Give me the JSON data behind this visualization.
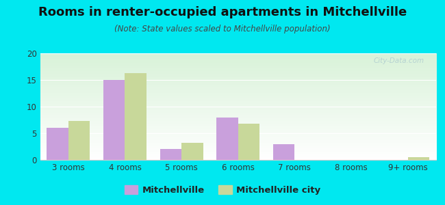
{
  "title": "Rooms in renter-occupied apartments in Mitchellville",
  "subtitle": "(Note: State values scaled to Mitchellville population)",
  "categories": [
    "3 rooms",
    "4 rooms",
    "5 rooms",
    "6 rooms",
    "7 rooms",
    "8 rooms",
    "9+ rooms"
  ],
  "mitchellville": [
    6,
    15,
    2,
    8,
    3,
    0,
    0
  ],
  "mitchellville_city": [
    7.3,
    16.3,
    3.2,
    6.8,
    0,
    0,
    0.5
  ],
  "color_mitchellville": "#c9a0dc",
  "color_city": "#c8d89a",
  "ylim": [
    0,
    20
  ],
  "yticks": [
    0,
    5,
    10,
    15,
    20
  ],
  "background_outer": "#00e8f0",
  "legend_mitchellville": "Mitchellville",
  "legend_city": "Mitchellville city",
  "bar_width": 0.38,
  "title_fontsize": 13,
  "subtitle_fontsize": 8.5
}
